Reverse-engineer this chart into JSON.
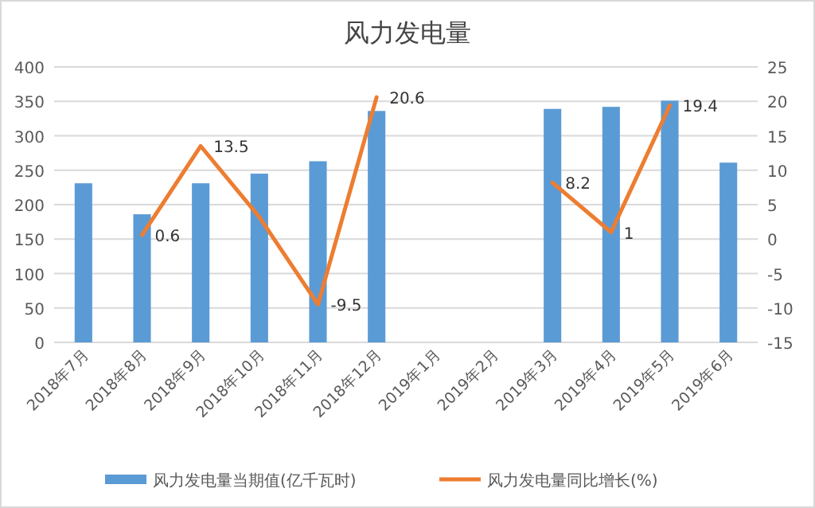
{
  "chart_data": {
    "type": "bar",
    "title": "风力发电量",
    "categories": [
      "2018年7月",
      "2018年8月",
      "2018年9月",
      "2018年10月",
      "2018年11月",
      "2018年12月",
      "2019年1月",
      "2019年2月",
      "2019年3月",
      "2019年4月",
      "2019年5月",
      "2019年6月"
    ],
    "series": [
      {
        "name": "风力发电量当期值(亿千瓦时)",
        "color": "#5b9bd5",
        "values": [
          231,
          186,
          231,
          245,
          263,
          336,
          null,
          null,
          339,
          342,
          351,
          261
        ]
      },
      {
        "name": "风力发电量同比增长(%)",
        "type": "line",
        "axis": "y2",
        "color": "#ed7d31",
        "values": [
          null,
          0.6,
          13.5,
          3.2,
          -9.5,
          20.6,
          null,
          null,
          8.2,
          1,
          19.4,
          null
        ],
        "value_labels": [
          null,
          "0.6",
          "13.5",
          null,
          "-9.5",
          "20.6",
          null,
          null,
          "8.2",
          "1",
          "19.4",
          null
        ]
      }
    ],
    "ylim": [
      0,
      400
    ],
    "yticks": [
      0,
      50,
      100,
      150,
      200,
      250,
      300,
      350,
      400
    ],
    "y2lim": [
      -15,
      25
    ],
    "y2ticks": [
      -15,
      -10,
      -5,
      0,
      5,
      10,
      15,
      20,
      25
    ],
    "grid": "y",
    "legend": "bottom"
  }
}
